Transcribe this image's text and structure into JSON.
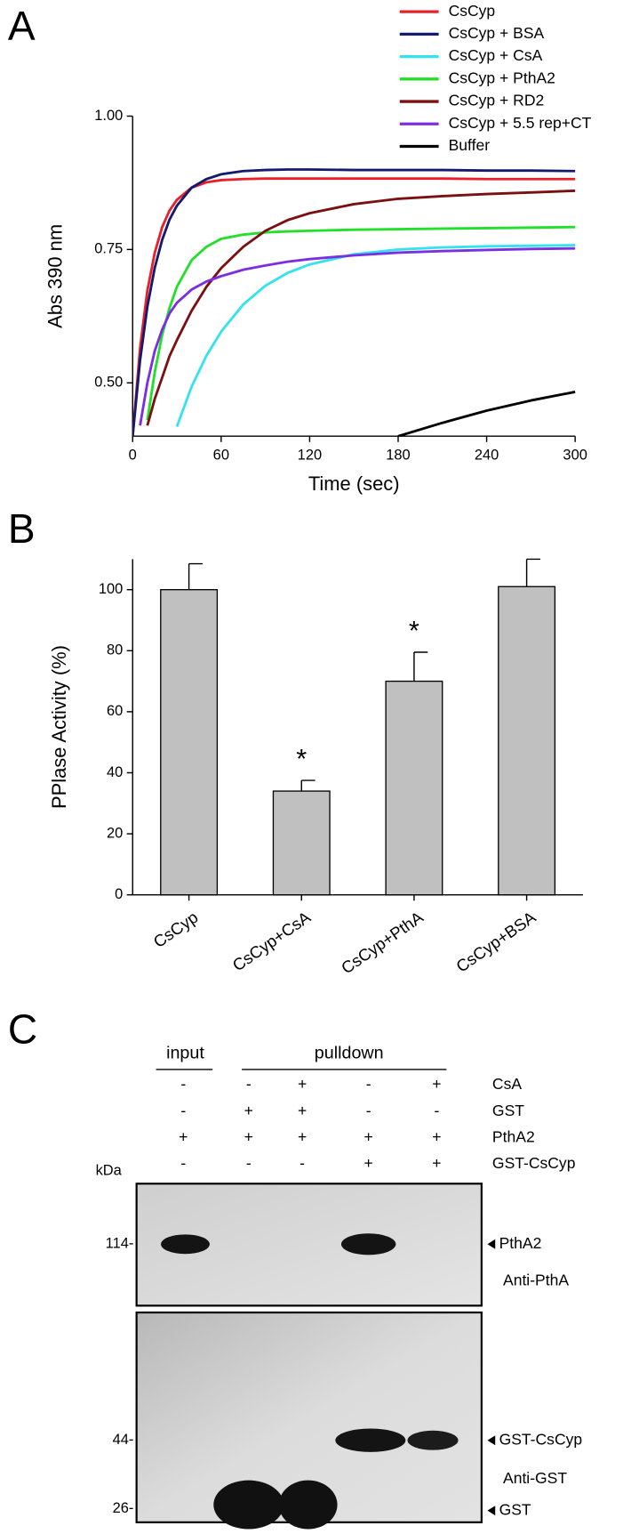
{
  "panel_labels": [
    "A",
    "B",
    "C"
  ],
  "chart_data": [
    {
      "type": "line",
      "xlabel": "Time (sec)",
      "ylabel": "Abs 390 nm",
      "x": [
        0,
        5,
        10,
        15,
        20,
        25,
        30,
        40,
        50,
        60,
        75,
        90,
        105,
        120,
        150,
        180,
        210,
        240,
        270,
        300
      ],
      "xlim": [
        0,
        300
      ],
      "xticks": [
        0,
        60,
        120,
        180,
        240,
        300
      ],
      "ylim": [
        0.4,
        1.0
      ],
      "yticks": [
        {
          "value": 0.5,
          "label": "0.50"
        },
        {
          "value": 0.75,
          "label": "0.75"
        },
        {
          "value": 1.0,
          "label": "1.00"
        }
      ],
      "legend": "upper right",
      "series": [
        {
          "name": "CsCyp",
          "color": "#e8202a",
          "values": [
            0.4,
            0.565,
            0.673,
            0.744,
            0.792,
            0.823,
            0.843,
            0.866,
            0.876,
            0.88,
            0.882,
            0.883,
            0.883,
            0.883,
            0.883,
            0.883,
            0.883,
            0.882,
            0.882,
            0.882
          ]
        },
        {
          "name": "CsCyp + BSA",
          "color": "#141a6e",
          "values": [
            0.4,
            0.542,
            0.643,
            0.716,
            0.768,
            0.806,
            0.832,
            0.866,
            0.882,
            0.891,
            0.897,
            0.899,
            0.9,
            0.9,
            0.899,
            0.899,
            0.899,
            0.898,
            0.898,
            0.897
          ]
        },
        {
          "name": "CsCyp + CsA",
          "color": "#35e3f0",
          "values": [
            null,
            null,
            null,
            null,
            null,
            null,
            0.418,
            0.493,
            0.551,
            0.596,
            0.647,
            0.682,
            0.706,
            0.722,
            0.741,
            0.75,
            0.754,
            0.756,
            0.757,
            0.758
          ]
        },
        {
          "name": "CsCyp + PthA2",
          "color": "#22e02a",
          "values": [
            null,
            null,
            0.43,
            0.52,
            0.59,
            0.64,
            0.68,
            0.73,
            0.755,
            0.77,
            0.778,
            0.782,
            0.784,
            0.785,
            0.787,
            0.788,
            0.789,
            0.79,
            0.791,
            0.792
          ]
        },
        {
          "name": "CsCyp + RD2",
          "color": "#7a1010",
          "values": [
            null,
            null,
            0.42,
            0.47,
            0.51,
            0.55,
            0.58,
            0.635,
            0.68,
            0.715,
            0.755,
            0.785,
            0.805,
            0.818,
            0.835,
            0.845,
            0.85,
            0.854,
            0.857,
            0.86
          ]
        },
        {
          "name": "CsCyp + 5.5 rep+CT",
          "color": "#7b2fe0",
          "values": [
            null,
            0.42,
            0.5,
            0.56,
            0.6,
            0.63,
            0.65,
            0.675,
            0.69,
            0.7,
            0.712,
            0.72,
            0.727,
            0.732,
            0.739,
            0.744,
            0.747,
            0.749,
            0.751,
            0.752
          ]
        },
        {
          "name": "Buffer",
          "color": "#000000",
          "values": [
            null,
            null,
            null,
            null,
            null,
            null,
            null,
            null,
            null,
            null,
            null,
            null,
            null,
            null,
            null,
            0.4,
            0.425,
            0.448,
            0.467,
            0.483
          ]
        }
      ]
    },
    {
      "type": "bar",
      "ylabel": "PPlase Activity (%)",
      "categories": [
        "CsCyp",
        "CsCyp+CsA",
        "CsCyp+PthA",
        "CsCyp+BSA"
      ],
      "values": [
        100,
        34,
        70,
        101
      ],
      "errors": [
        8.5,
        3.5,
        9.5,
        9
      ],
      "markers": [
        null,
        "*",
        "*",
        null
      ],
      "color": "#c0c0c0",
      "ylim": [
        0,
        110
      ],
      "yticks": [
        0,
        20,
        40,
        60,
        80,
        100
      ]
    }
  ],
  "blot": {
    "groups": [
      "input",
      "pulldown"
    ],
    "conditions": [
      {
        "name": "CsA",
        "lanes": [
          "-",
          "-",
          "+",
          "-",
          "+"
        ]
      },
      {
        "name": "GST",
        "lanes": [
          "-",
          "+",
          "+",
          "-",
          "-"
        ]
      },
      {
        "name": "PthA2",
        "lanes": [
          "+",
          "+",
          "+",
          "+",
          "+"
        ]
      },
      {
        "name": "GST-CsCyp",
        "lanes": [
          "-",
          "-",
          "-",
          "+",
          "+"
        ]
      }
    ],
    "unit": "kDa",
    "markers": [
      "114-",
      "44-",
      "26-"
    ],
    "bands": [
      "PthA2",
      "GST-CsCyp",
      "GST"
    ],
    "antibodies": [
      "Anti-PthA",
      "Anti-GST"
    ]
  }
}
